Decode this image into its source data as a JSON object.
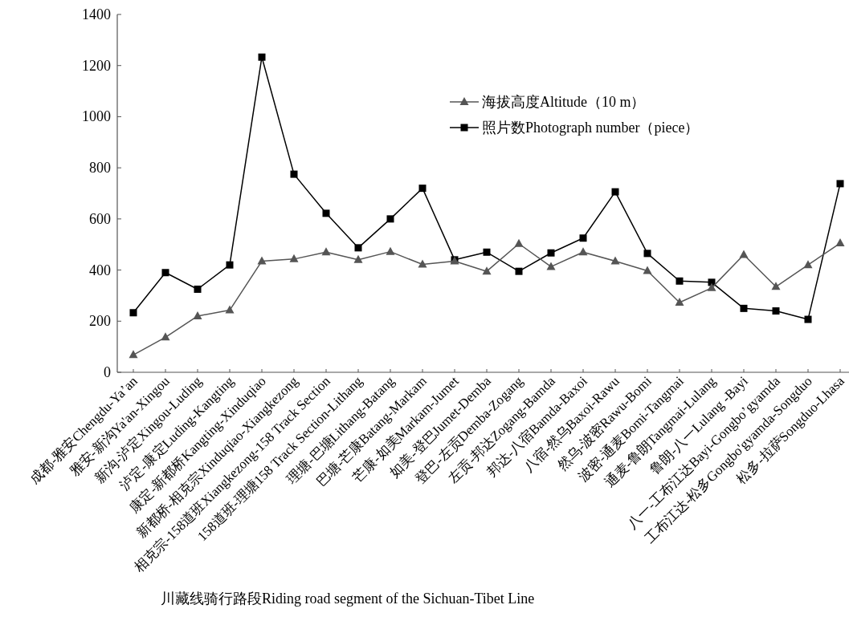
{
  "chart_data": {
    "type": "line",
    "xlabel": "川藏线骑行路段Riding road segment of the Sichuan-Tibet Line",
    "categories": [
      "成都-雅安Chengdu-Ya’an",
      "雅安-新沟Ya'an-Xingou",
      "新沟-泸定Xingou-Luding",
      "泸定-康定Luding-Kangting",
      "康定-新都桥Kangting-Xinduqiao",
      "新都桥-相克宗Xinduqiao-Xiangkezong",
      "相克宗-158道班Xiangkezong-158 Track Section",
      "158道班-理塘158 Track Section-Lithang",
      "理塘-巴塘Lithang-Batang",
      "巴塘-芒康Batang-Markam",
      "芒康-如美Markam-Jumet",
      "如美-登巴Jumet-Demba",
      "登巴-左贡Demba-Zogang",
      "左贡-邦达Zogang-Bamda",
      "邦达-八宿Bamda-Baxoi",
      "八宿-然乌Baxoi-Rawu",
      "然乌-波密Rawu-Bomi",
      "波密-通麦Bomi-Tangmai",
      "通麦-鲁朗Tangmai-Lulang",
      "鲁朗-八一Lulang -Bayi",
      "八一-工布江达Bayi-Gongbo’gyamda",
      "工布江达-松多Gongbo'gyamda-Songduo",
      "松多-拉萨Songduo-Lhasa"
    ],
    "series": [
      {
        "name": "海拔高度Altitude（10 m）",
        "color": "#555555",
        "marker": "triangle",
        "values": [
          68,
          137,
          220,
          243,
          435,
          443,
          470,
          440,
          472,
          422,
          435,
          395,
          503,
          413,
          470,
          435,
          397,
          273,
          330,
          460,
          335,
          420,
          505
        ]
      },
      {
        "name": "照片数Photograph number（piece）",
        "color": "#000000",
        "marker": "square",
        "values": [
          233,
          390,
          325,
          420,
          1233,
          775,
          622,
          487,
          600,
          720,
          440,
          470,
          395,
          467,
          525,
          706,
          465,
          357,
          352,
          250,
          240,
          207,
          738
        ]
      }
    ],
    "ylim": [
      0,
      1400
    ],
    "yticks": [
      0,
      200,
      400,
      600,
      800,
      1000,
      1200,
      1400
    ],
    "legend": "top",
    "grid": false
  }
}
